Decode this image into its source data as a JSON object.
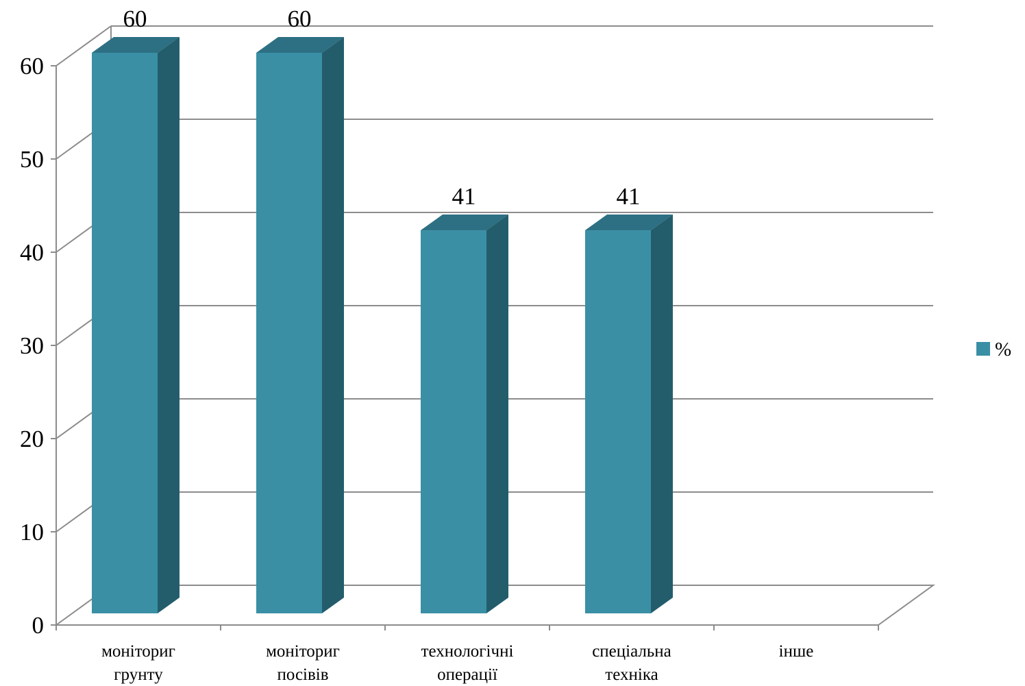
{
  "chart_data": {
    "type": "bar",
    "categories": [
      [
        "моніториг",
        "грунту"
      ],
      [
        "моніториг",
        "посівів"
      ],
      [
        "технологічні",
        "операції"
      ],
      [
        "спеціальна",
        "техніка"
      ],
      [
        "інше"
      ]
    ],
    "series": [
      {
        "name": "%",
        "values": [
          60,
          60,
          41,
          41,
          0
        ]
      }
    ],
    "data_labels": [
      "60",
      "60",
      "41",
      "41",
      ""
    ],
    "ylim": [
      0,
      60
    ],
    "yticks": [
      0,
      10,
      20,
      30,
      40,
      50,
      60
    ],
    "grid": true,
    "three_d": true,
    "legend_position": "right",
    "colors": {
      "front": "#3A8FA5",
      "top": "#2D7083",
      "side": "#235D6C",
      "grid": "#8C8C8C"
    }
  }
}
